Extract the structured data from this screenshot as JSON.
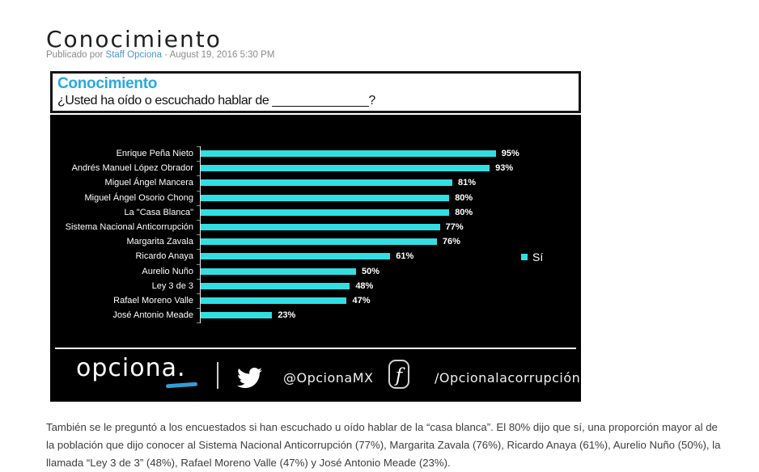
{
  "page": {
    "title": "Conocimiento",
    "byline": {
      "prefix": "Publicado por ",
      "author": "Staff Opciona",
      "separator": " · ",
      "date": "August 19, 2016 5:30 PM"
    },
    "paragraph": "También se le preguntó a los encuestados si han escuchado u oído hablar de la “casa blanca”. El 80% dijo que sí, una proporción mayor al de la población que dijo conocer al Sistema Nacional Anticorrupción (77%), Margarita Zavala (76%), Ricardo Anaya (61%), Aurelio Nuño (50%), la llamada “Ley 3 de 3” (48%), Rafael Moreno Valle (47%) y José Antonio Meade (23%)."
  },
  "chart": {
    "header": {
      "title": "Conocimiento",
      "question": "¿Usted ha oído o escuchado hablar de ______________?"
    },
    "footer": {
      "brand": "opciona.",
      "twitter_handle": "@OpcionaMX",
      "facebook_icon_letter": "f",
      "facebook_handle": "/Opcionalacorrupción"
    }
  },
  "chart_data": {
    "type": "bar",
    "orientation": "horizontal",
    "title": "Conocimiento",
    "subtitle": "¿Usted ha oído o escuchado hablar de ______________?",
    "categories": [
      "Enrique Peña Nieto",
      "Andrés Manuel López Obrador",
      "Miguel Ángel Mancera",
      "Miguel Ángel Osorio Chong",
      "La \"Casa Blanca\"",
      "Sistema Nacional Anticorrupción",
      "Margarita Zavala",
      "Ricardo Anaya",
      "Aurelio Nuño",
      "Ley 3 de 3",
      "Rafael Moreno Valle",
      "José Antonio Meade"
    ],
    "values": [
      95,
      93,
      81,
      80,
      80,
      77,
      76,
      61,
      50,
      48,
      47,
      23
    ],
    "value_suffix": "%",
    "legend": [
      {
        "label": "Sí",
        "color": "#31dfe3"
      }
    ],
    "legend_position": "right",
    "xlim": [
      0,
      100
    ],
    "grid": false,
    "background": "#000000",
    "bar_color": "#31dfe3"
  },
  "colors": {
    "bar_cyan": "#31dfe3",
    "chart_title_blue": "#29a9e0",
    "link_blue": "#4a96d2",
    "brand_underline_blue": "#2e9fd4",
    "chart_background": "#000000"
  }
}
